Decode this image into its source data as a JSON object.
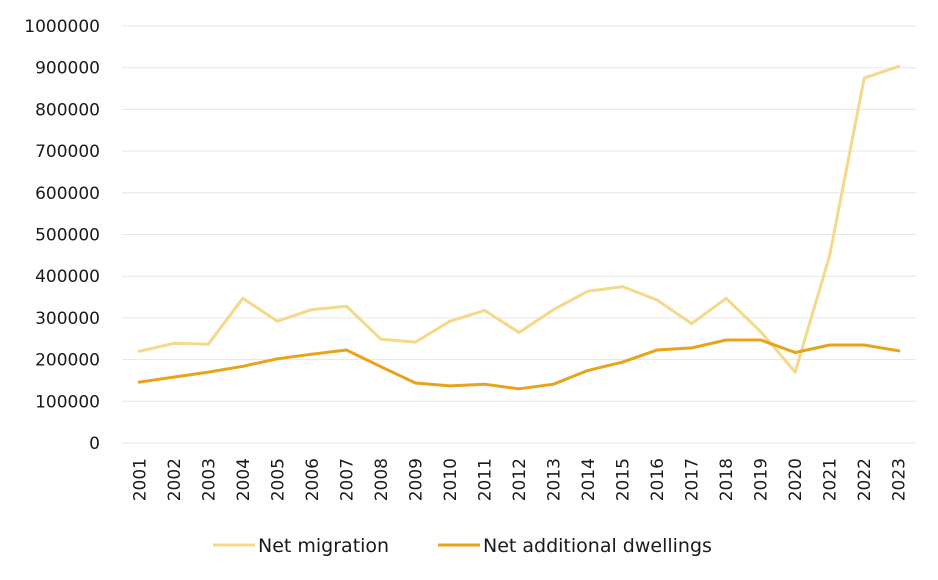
{
  "chart_data": {
    "type": "line",
    "title": "",
    "xlabel": "",
    "ylabel": "",
    "ylim": [
      0,
      1000000
    ],
    "yticks": [
      "0",
      "100000",
      "200000",
      "300000",
      "400000",
      "500000",
      "600000",
      "700000",
      "800000",
      "900000",
      "1000000"
    ],
    "categories": [
      "2001",
      "2002",
      "2003",
      "2004",
      "2005",
      "2006",
      "2007",
      "2008",
      "2009",
      "2010",
      "2011",
      "2012",
      "2013",
      "2014",
      "2015",
      "2016",
      "2017",
      "2018",
      "2019",
      "2020",
      "2021",
      "2022",
      "2023"
    ],
    "grid": true,
    "legend_position": "bottom",
    "series": [
      {
        "name": "Net migration",
        "color": "#f5d98a",
        "values": [
          220000,
          239000,
          237000,
          347000,
          292000,
          320000,
          328000,
          249000,
          242000,
          292000,
          318000,
          265000,
          320000,
          364000,
          375000,
          343000,
          286000,
          347000,
          267000,
          170000,
          450000,
          875000,
          903000
        ]
      },
      {
        "name": "Net additional dwellings",
        "color": "#e8a31a",
        "values": [
          146000,
          158000,
          170000,
          184000,
          202000,
          213000,
          223000,
          183000,
          144000,
          137000,
          141000,
          130000,
          141000,
          174000,
          194000,
          223000,
          228000,
          247000,
          247000,
          217000,
          235000,
          235000,
          221000
        ]
      }
    ]
  }
}
